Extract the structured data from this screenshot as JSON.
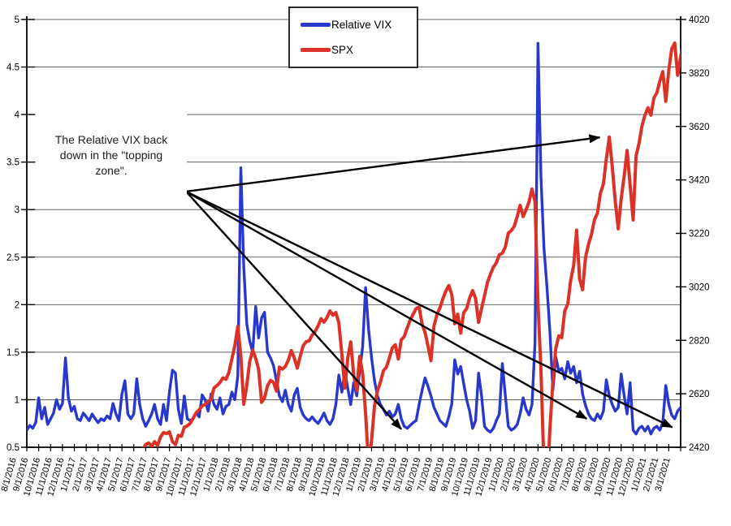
{
  "chart_data": {
    "type": "line",
    "title": "",
    "grid": "horizontal",
    "legend_position": "top-center",
    "left_axis": {
      "min": 0.5,
      "max": 5,
      "ticks": [
        0.5,
        1,
        1.5,
        2,
        2.5,
        3,
        3.5,
        4,
        4.5,
        5
      ],
      "labels": [
        "0.5",
        "1",
        "1.5",
        "2",
        "2.5",
        "3",
        "3.5",
        "4",
        "4.5",
        "5"
      ]
    },
    "right_axis": {
      "min": 2420,
      "max": 4020,
      "ticks": [
        2420,
        2620,
        2820,
        3020,
        3220,
        3420,
        3620,
        3820,
        4020
      ],
      "labels": [
        "2420",
        "2620",
        "2820",
        "3020",
        "3220",
        "3420",
        "3620",
        "3820",
        "4020"
      ]
    },
    "x_axis": {
      "unit": "month",
      "labels": [
        "8/1/2016",
        "9/1/2016",
        "10/1/2016",
        "11/1/2016",
        "12/1/2016",
        "1/1/2017",
        "2/1/2017",
        "3/1/2017",
        "4/1/2017",
        "5/1/2017",
        "6/1/2017",
        "7/1/2017",
        "8/1/2017",
        "9/1/2017",
        "10/1/2017",
        "11/1/2017",
        "12/1/2017",
        "1/1/2018",
        "2/1/2018",
        "3/1/2018",
        "4/1/2018",
        "5/1/2018",
        "6/1/2018",
        "7/1/2018",
        "8/1/2018",
        "9/1/2018",
        "10/1/2018",
        "11/1/2018",
        "12/1/2018",
        "1/1/2019",
        "2/1/2019",
        "3/1/2019",
        "4/1/2019",
        "5/1/2019",
        "6/1/2019",
        "7/1/2019",
        "8/1/2019",
        "9/1/2019",
        "10/1/2019",
        "11/1/2019",
        "12/1/2019",
        "1/1/2020",
        "2/1/2020",
        "3/1/2020",
        "4/1/2020",
        "5/1/2020",
        "6/1/2020",
        "7/1/2020",
        "8/1/2020",
        "9/1/2020",
        "10/1/2020",
        "11/1/2020",
        "12/1/2020",
        "1/1/2021",
        "2/1/2021",
        "3/1/2021"
      ]
    },
    "series": [
      {
        "name": "Relative VIX",
        "color": "#2838cc",
        "axis": "left",
        "x0": 0,
        "dx": 0.25,
        "values": [
          0.68,
          0.73,
          0.7,
          0.76,
          1.02,
          0.8,
          0.92,
          0.74,
          0.8,
          0.86,
          1.0,
          0.9,
          0.96,
          1.44,
          1.02,
          0.88,
          0.93,
          0.8,
          0.78,
          0.86,
          0.82,
          0.78,
          0.85,
          0.8,
          0.76,
          0.8,
          0.78,
          0.83,
          0.8,
          0.96,
          0.85,
          0.78,
          1.06,
          1.2,
          0.85,
          0.8,
          0.85,
          1.22,
          0.95,
          0.8,
          0.72,
          0.78,
          0.85,
          0.95,
          0.8,
          0.74,
          0.95,
          0.78,
          1.08,
          1.31,
          1.28,
          0.9,
          0.75,
          1.04,
          0.8,
          0.78,
          0.8,
          0.86,
          0.82,
          1.05,
          1.0,
          0.88,
          1.06,
          0.95,
          0.9,
          1.02,
          0.85,
          0.93,
          0.95,
          1.08,
          1.0,
          1.25,
          3.44,
          2.4,
          1.8,
          1.62,
          1.5,
          1.98,
          1.65,
          1.86,
          1.92,
          1.5,
          1.44,
          1.36,
          1.2,
          1.04,
          0.98,
          1.1,
          0.95,
          0.88,
          1.05,
          1.12,
          0.92,
          0.84,
          0.8,
          0.78,
          0.82,
          0.78,
          0.75,
          0.8,
          0.86,
          0.78,
          0.74,
          0.8,
          0.95,
          1.26,
          1.08,
          1.3,
          1.12,
          0.95,
          1.18,
          1.04,
          1.3,
          1.56,
          2.18,
          1.74,
          1.44,
          1.2,
          1.04,
          0.95,
          0.9,
          0.84,
          0.88,
          0.82,
          0.85,
          0.95,
          0.8,
          0.72,
          0.7,
          0.73,
          0.76,
          0.78,
          0.95,
          1.1,
          1.23,
          1.14,
          1.04,
          0.92,
          0.85,
          0.78,
          0.75,
          0.72,
          0.82,
          0.96,
          1.42,
          1.27,
          1.35,
          1.17,
          1.0,
          0.88,
          0.7,
          0.78,
          1.28,
          1.05,
          0.72,
          0.68,
          0.66,
          0.7,
          0.78,
          0.85,
          1.38,
          1.05,
          0.72,
          0.68,
          0.7,
          0.74,
          0.85,
          1.02,
          0.9,
          0.84,
          0.95,
          1.6,
          4.75,
          3.35,
          2.6,
          2.2,
          1.72,
          1.1,
          1.45,
          1.3,
          1.33,
          1.22,
          1.4,
          1.28,
          1.35,
          1.18,
          1.3,
          1.06,
          0.94,
          0.85,
          0.8,
          0.78,
          0.85,
          0.8,
          0.88,
          1.21,
          1.04,
          0.95,
          0.88,
          0.92,
          1.27,
          1.04,
          0.85,
          1.18,
          0.68,
          0.64,
          0.7,
          0.72,
          0.67,
          0.72,
          0.64,
          0.7,
          0.72,
          0.68,
          0.76,
          1.15,
          0.95,
          0.84,
          0.8,
          0.88,
          0.92,
          0.85,
          0.8
        ]
      },
      {
        "name": "SPX",
        "color": "#dc3126",
        "axis": "right",
        "x0": 9,
        "dx": 0.25,
        "values": [
          2384,
          2396,
          2404,
          2412,
          2430,
          2436,
          2424,
          2441,
          2426,
          2459,
          2475,
          2471,
          2478,
          2441,
          2430,
          2465,
          2461,
          2495,
          2500,
          2510,
          2529,
          2550,
          2560,
          2575,
          2580,
          2590,
          2600,
          2642,
          2651,
          2662,
          2680,
          2674,
          2700,
          2750,
          2800,
          2872,
          2762,
          2581,
          2650,
          2740,
          2783,
          2752,
          2712,
          2588,
          2605,
          2650,
          2670,
          2663,
          2630,
          2720,
          2712,
          2722,
          2746,
          2782,
          2754,
          2716,
          2760,
          2800,
          2815,
          2818,
          2840,
          2853,
          2874,
          2901,
          2888,
          2905,
          2930,
          2914,
          2924,
          2885,
          2768,
          2641,
          2755,
          2814,
          2690,
          2632,
          2760,
          2695,
          2546,
          2355,
          2447,
          2575,
          2630,
          2664,
          2706,
          2720,
          2754,
          2792,
          2803,
          2750,
          2822,
          2834,
          2867,
          2896,
          2918,
          2939,
          2945,
          2880,
          2850,
          2798,
          2744,
          2873,
          2917,
          2941,
          2976,
          3004,
          3025,
          2990,
          2882,
          2918,
          2847,
          2924,
          2938,
          2978,
          3006,
          2977,
          2887,
          2938,
          2986,
          3037,
          3067,
          3094,
          3110,
          3140,
          3146,
          3168,
          3221,
          3230,
          3246,
          3283,
          3325,
          3283,
          3308,
          3338,
          3386,
          3338,
          2954,
          2711,
          2350,
          2230,
          2488,
          2663,
          2790,
          2837,
          2830,
          2930,
          2955,
          3044,
          3100,
          3232,
          3050,
          3009,
          3130,
          3180,
          3216,
          3271,
          3295,
          3370,
          3405,
          3500,
          3580,
          3470,
          3340,
          3237,
          3348,
          3435,
          3530,
          3400,
          3270,
          3510,
          3557,
          3622,
          3663,
          3690,
          3662,
          3727,
          3745,
          3790,
          3825,
          3714,
          3830,
          3910,
          3932,
          3811,
          3880,
          3943,
          3968
        ]
      }
    ],
    "annotation": {
      "lines": [
        "The Relative VIX back",
        "down in the \"topping",
        "zone\"."
      ]
    },
    "arrows": {
      "origin": {
        "month": 13.4,
        "value": 3.19
      },
      "targets": [
        {
          "month": 48.2,
          "value": 3.76
        },
        {
          "month": 31.5,
          "value": 0.69
        },
        {
          "month": 47.1,
          "value": 0.8
        },
        {
          "month": 54.3,
          "value": 0.71
        }
      ]
    }
  }
}
